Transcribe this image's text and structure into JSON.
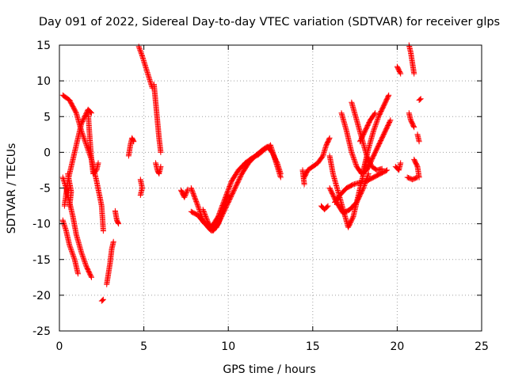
{
  "chart_data": {
    "type": "scatter",
    "title": "Day 091 of 2022, Sidereal Day-to-day VTEC variation (SDTVAR) for receiver glps",
    "xlabel": "GPS time / hours",
    "ylabel": "SDTVAR / TECUs",
    "xlim": [
      0,
      25
    ],
    "ylim": [
      -25,
      15
    ],
    "xticks": [
      0,
      5,
      10,
      15,
      20,
      25
    ],
    "yticks": [
      -25,
      -20,
      -15,
      -10,
      -5,
      0,
      5,
      10,
      15
    ],
    "grid": true,
    "marker": "+",
    "colors": {
      "series": "#ff0000",
      "grid": "#a0a0a0",
      "axis": "#000000"
    },
    "segments": [
      {
        "points": [
          [
            0.2,
            8.0
          ],
          [
            0.6,
            7.3
          ],
          [
            1.0,
            5.5
          ],
          [
            1.3,
            3.0
          ],
          [
            1.6,
            1.0
          ],
          [
            1.9,
            -1.0
          ],
          [
            2.2,
            -4.0
          ],
          [
            2.5,
            -7.5
          ],
          [
            2.6,
            -11.0
          ]
        ]
      },
      {
        "points": [
          [
            0.3,
            -7.5
          ],
          [
            0.5,
            -4.0
          ],
          [
            0.8,
            -1.0
          ],
          [
            1.1,
            2.0
          ],
          [
            1.3,
            4.0
          ],
          [
            1.7,
            6.0
          ],
          [
            1.9,
            5.5
          ]
        ]
      },
      {
        "points": [
          [
            0.2,
            -3.5
          ],
          [
            0.4,
            -5.0
          ],
          [
            0.6,
            -7.0
          ],
          [
            0.8,
            -9.0
          ],
          [
            1.0,
            -11.5
          ],
          [
            1.3,
            -14.0
          ],
          [
            1.6,
            -16.0
          ],
          [
            1.9,
            -17.5
          ]
        ]
      },
      {
        "points": [
          [
            0.2,
            -9.5
          ],
          [
            0.4,
            -11.0
          ],
          [
            0.6,
            -13.0
          ],
          [
            0.9,
            -15.0
          ],
          [
            1.1,
            -17.0
          ]
        ]
      },
      {
        "points": [
          [
            0.5,
            -3.0
          ],
          [
            0.7,
            -5.5
          ],
          [
            0.6,
            -7.5
          ]
        ]
      },
      {
        "points": [
          [
            1.7,
            5.5
          ],
          [
            1.8,
            2.0
          ],
          [
            1.9,
            -1.0
          ],
          [
            2.0,
            -3.0
          ],
          [
            2.2,
            -2.5
          ],
          [
            2.3,
            -1.5
          ]
        ]
      },
      {
        "points": [
          [
            2.5,
            -20.8
          ],
          [
            2.6,
            -20.6
          ]
        ]
      },
      {
        "points": [
          [
            2.8,
            -18.5
          ],
          [
            2.9,
            -17.0
          ],
          [
            3.0,
            -15.5
          ],
          [
            3.1,
            -13.5
          ],
          [
            3.2,
            -12.5
          ]
        ]
      },
      {
        "points": [
          [
            3.3,
            -8.2
          ],
          [
            3.4,
            -9.5
          ],
          [
            3.5,
            -10.0
          ]
        ]
      },
      {
        "points": [
          [
            4.1,
            -0.5
          ],
          [
            4.2,
            1.0
          ],
          [
            4.3,
            2.0
          ],
          [
            4.4,
            1.5
          ]
        ]
      },
      {
        "points": [
          [
            4.8,
            -3.8
          ],
          [
            4.9,
            -5.0
          ],
          [
            4.8,
            -6.0
          ]
        ]
      },
      {
        "points": [
          [
            4.7,
            14.8
          ],
          [
            4.9,
            13.5
          ],
          [
            5.1,
            12.0
          ],
          [
            5.3,
            10.5
          ],
          [
            5.5,
            9.0
          ]
        ]
      },
      {
        "points": [
          [
            5.6,
            9.5
          ],
          [
            5.7,
            7.0
          ],
          [
            5.8,
            4.5
          ],
          [
            5.9,
            2.0
          ],
          [
            6.0,
            0.0
          ]
        ]
      },
      {
        "points": [
          [
            5.7,
            -1.5
          ],
          [
            5.8,
            -2.5
          ],
          [
            5.9,
            -3.0
          ],
          [
            6.0,
            -2.0
          ]
        ]
      },
      {
        "points": [
          [
            7.2,
            -5.3
          ],
          [
            7.4,
            -6.3
          ],
          [
            7.6,
            -5.2
          ]
        ]
      },
      {
        "points": [
          [
            7.8,
            -5.0
          ],
          [
            8.2,
            -7.5
          ],
          [
            8.5,
            -9.5
          ],
          [
            8.8,
            -10.5
          ],
          [
            9.0,
            -11.0
          ],
          [
            9.3,
            -10.5
          ],
          [
            9.6,
            -9.0
          ],
          [
            10.0,
            -7.0
          ],
          [
            10.4,
            -5.0
          ],
          [
            10.8,
            -3.0
          ],
          [
            11.2,
            -1.5
          ],
          [
            11.6,
            -0.5
          ],
          [
            12.0,
            0.3
          ],
          [
            12.3,
            0.8
          ],
          [
            12.6,
            0.0
          ],
          [
            12.9,
            -1.5
          ],
          [
            13.1,
            -3.0
          ]
        ]
      },
      {
        "points": [
          [
            7.8,
            -8.3
          ],
          [
            8.2,
            -8.8
          ],
          [
            8.6,
            -10.0
          ],
          [
            9.0,
            -10.5
          ],
          [
            9.4,
            -9.0
          ],
          [
            9.8,
            -6.5
          ],
          [
            10.2,
            -4.0
          ],
          [
            10.6,
            -2.5
          ],
          [
            11.0,
            -1.5
          ],
          [
            11.4,
            -0.8
          ],
          [
            11.8,
            -0.3
          ],
          [
            12.2,
            0.5
          ],
          [
            12.5,
            1.0
          ],
          [
            12.7,
            -0.5
          ],
          [
            12.9,
            -2.0
          ],
          [
            13.1,
            -3.5
          ]
        ]
      },
      {
        "points": [
          [
            8.5,
            -8.0
          ],
          [
            8.8,
            -9.8
          ],
          [
            9.1,
            -11.0
          ],
          [
            9.4,
            -10.0
          ],
          [
            9.7,
            -8.0
          ],
          [
            10.0,
            -6.0
          ]
        ]
      },
      {
        "points": [
          [
            14.5,
            -3.5
          ],
          [
            14.7,
            -2.5
          ],
          [
            15.0,
            -2.0
          ],
          [
            15.3,
            -1.5
          ],
          [
            15.6,
            -0.5
          ],
          [
            15.8,
            1.0
          ],
          [
            16.0,
            2.0
          ]
        ]
      },
      {
        "points": [
          [
            14.4,
            -2.5
          ],
          [
            14.5,
            -4.5
          ]
        ]
      },
      {
        "points": [
          [
            15.5,
            -7.5
          ],
          [
            15.7,
            -8.0
          ],
          [
            15.9,
            -7.5
          ]
        ]
      },
      {
        "points": [
          [
            16.0,
            -0.5
          ],
          [
            16.2,
            -3.0
          ],
          [
            16.5,
            -5.5
          ],
          [
            16.8,
            -8.0
          ],
          [
            17.1,
            -10.5
          ],
          [
            17.4,
            -9.0
          ],
          [
            17.7,
            -6.0
          ],
          [
            18.0,
            -3.0
          ],
          [
            18.2,
            -1.0
          ]
        ]
      },
      {
        "points": [
          [
            16.7,
            5.5
          ],
          [
            17.0,
            3.0
          ],
          [
            17.3,
            0.0
          ],
          [
            17.6,
            -2.0
          ],
          [
            17.9,
            -3.0
          ],
          [
            18.2,
            -2.5
          ],
          [
            18.4,
            -1.5
          ]
        ]
      },
      {
        "points": [
          [
            17.3,
            7.0
          ],
          [
            17.6,
            4.5
          ],
          [
            17.9,
            2.0
          ],
          [
            18.2,
            -0.5
          ],
          [
            18.5,
            -2.0
          ],
          [
            18.8,
            -2.5
          ],
          [
            19.1,
            -2.3
          ]
        ]
      },
      {
        "points": [
          [
            16.3,
            -7.0
          ],
          [
            16.6,
            -6.0
          ],
          [
            17.0,
            -5.0
          ],
          [
            17.4,
            -4.5
          ],
          [
            17.8,
            -4.2
          ],
          [
            18.2,
            -4.0
          ],
          [
            18.6,
            -3.5
          ],
          [
            19.0,
            -3.0
          ],
          [
            19.4,
            -2.5
          ]
        ]
      },
      {
        "points": [
          [
            16.0,
            -5.0
          ],
          [
            16.4,
            -7.0
          ],
          [
            16.8,
            -8.5
          ],
          [
            17.2,
            -8.0
          ],
          [
            17.6,
            -7.0
          ],
          [
            18.0,
            -5.0
          ],
          [
            18.3,
            -3.0
          ]
        ]
      },
      {
        "points": [
          [
            17.8,
            1.5
          ],
          [
            18.1,
            3.0
          ],
          [
            18.4,
            4.5
          ],
          [
            18.7,
            5.5
          ]
        ]
      },
      {
        "points": [
          [
            18.0,
            -2.5
          ],
          [
            18.3,
            0.5
          ],
          [
            18.6,
            3.0
          ],
          [
            18.9,
            5.0
          ],
          [
            19.2,
            6.5
          ],
          [
            19.5,
            8.0
          ]
        ]
      },
      {
        "points": [
          [
            18.4,
            -1.5
          ],
          [
            18.7,
            0.0
          ],
          [
            19.0,
            1.5
          ],
          [
            19.3,
            3.0
          ],
          [
            19.6,
            4.5
          ]
        ]
      },
      {
        "points": [
          [
            19.9,
            -2.0
          ],
          [
            20.1,
            -2.5
          ],
          [
            20.2,
            -1.5
          ]
        ]
      },
      {
        "points": [
          [
            20.0,
            12.0
          ],
          [
            20.2,
            11.0
          ]
        ]
      },
      {
        "points": [
          [
            20.7,
            15.0
          ],
          [
            20.8,
            14.0
          ],
          [
            20.9,
            12.5
          ],
          [
            21.0,
            11.0
          ]
        ]
      },
      {
        "points": [
          [
            20.7,
            5.5
          ],
          [
            20.8,
            4.5
          ],
          [
            21.0,
            3.5
          ]
        ]
      },
      {
        "points": [
          [
            20.6,
            -3.5
          ],
          [
            20.9,
            -3.8
          ],
          [
            21.2,
            -3.5
          ]
        ]
      },
      {
        "points": [
          [
            21.3,
            7.3
          ],
          [
            21.4,
            7.5
          ]
        ]
      },
      {
        "points": [
          [
            21.2,
            2.5
          ],
          [
            21.3,
            1.5
          ]
        ]
      },
      {
        "points": [
          [
            21.0,
            -1.0
          ],
          [
            21.2,
            -2.0
          ],
          [
            21.3,
            -3.5
          ]
        ]
      }
    ]
  }
}
